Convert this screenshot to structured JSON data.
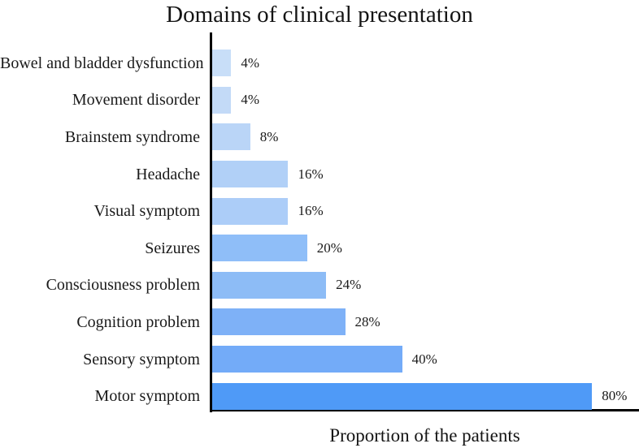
{
  "chart_data": {
    "type": "bar",
    "orientation": "horizontal",
    "title": "Domains of clinical presentation",
    "xlabel": "Proportion of the patients",
    "ylabel": "",
    "categories": [
      "Bowel and bladder dysfunction",
      "Movement disorder",
      "Brainstem syndrome",
      "Headache",
      "Visual symptom",
      "Seizures",
      "Consciousness problem",
      "Cognition problem",
      "Sensory symptom",
      "Motor symptom"
    ],
    "values": [
      4,
      4,
      8,
      16,
      16,
      20,
      24,
      28,
      40,
      80
    ],
    "value_labels": [
      "4%",
      "4%",
      "8%",
      "16%",
      "16%",
      "20%",
      "24%",
      "28%",
      "40%",
      "80%"
    ],
    "bar_colors": [
      "#C8DEF8",
      "#C3DAF7",
      "#BAD5F7",
      "#B1D0F7",
      "#ACCDF8",
      "#8FBEF8",
      "#8DBCF6",
      "#7EB1F7",
      "#73ABF8",
      "#4F9AF7"
    ],
    "xlim": [
      0,
      90
    ],
    "axis_color": "#000000",
    "grid": false,
    "legend": null
  }
}
